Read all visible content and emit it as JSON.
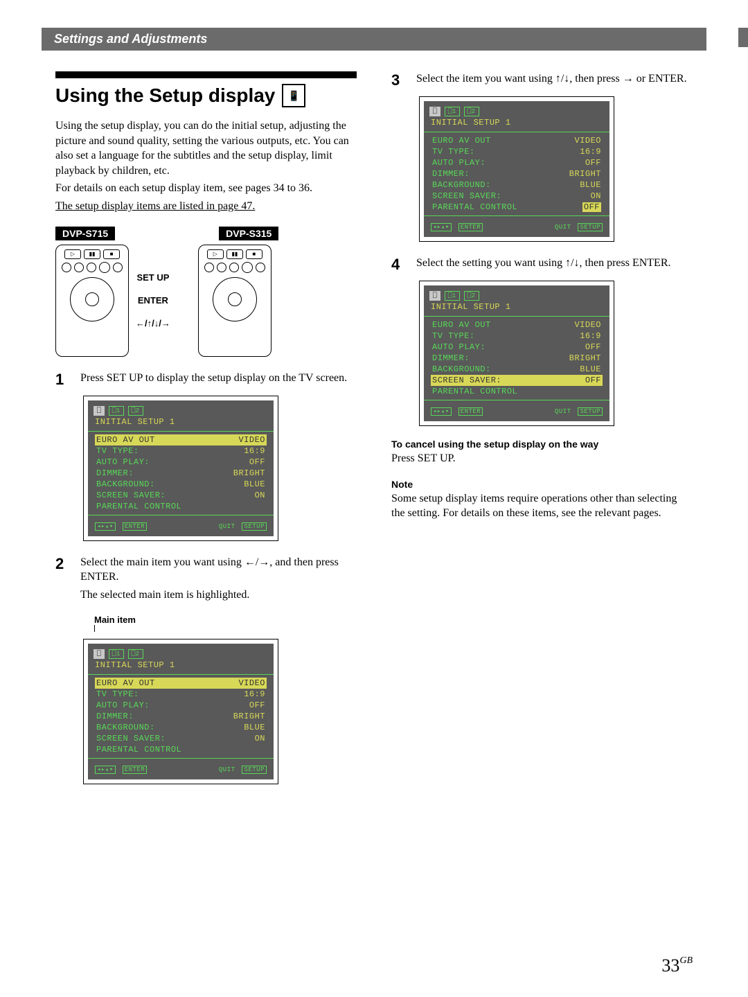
{
  "header": {
    "title": "Settings and Adjustments"
  },
  "section": {
    "heading": "Using the Setup display",
    "intro1": "Using the setup display, you can do the initial setup, adjusting the picture and sound quality, setting the various outputs, etc.  You can also set a language for the subtitles and the setup display, limit playback by children, etc.",
    "intro2": "For details on each setup display item, see pages 34 to 36.",
    "intro3": "The setup display items are listed in page 47."
  },
  "models": {
    "a": "DVP-S715",
    "b": "DVP-S315"
  },
  "callouts": {
    "setup": "SET UP",
    "enter": "ENTER",
    "arrows": "←/↑/↓/→"
  },
  "steps": {
    "s1": "Press SET UP to display the setup display on the TV screen.",
    "s2a": "Select the main item you want using ←/→, and then press ENTER.",
    "s2b": "The selected main item is highlighted.",
    "s3": "Select the item you want using ↑/↓, then press → or ENTER.",
    "s4": "Select the setting you want using ↑/↓, then press ENTER."
  },
  "mainItemLabel": "Main item",
  "osd": {
    "tabs": {
      "t1": "⎕1",
      "t2": "⎕2"
    },
    "title": "INITIAL SETUP 1",
    "rows": [
      {
        "k": "EURO AV OUT",
        "v": "VIDEO"
      },
      {
        "k": "TV TYPE:",
        "v": "16:9"
      },
      {
        "k": "AUTO PLAY:",
        "v": "OFF"
      },
      {
        "k": "DIMMER:",
        "v": "BRIGHT"
      },
      {
        "k": "BACKGROUND:",
        "v": "BLUE"
      },
      {
        "k": "SCREEN SAVER:",
        "v": "ON"
      },
      {
        "k": "PARENTAL CONTROL",
        "v": ""
      }
    ],
    "screenSaverOff": "OFF",
    "controlHighlightValue": "OFF",
    "footer": {
      "quit": "QUIT",
      "enter": "ENTER",
      "setup": "SETUP"
    }
  },
  "cancel": {
    "heading": "To cancel using the setup display on the way",
    "body": "Press SET UP."
  },
  "note": {
    "heading": "Note",
    "body": "Some setup display items require operations other than selecting the setting.  For details on these items, see the relevant pages."
  },
  "pageNumber": {
    "num": "33",
    "region": "GB"
  }
}
